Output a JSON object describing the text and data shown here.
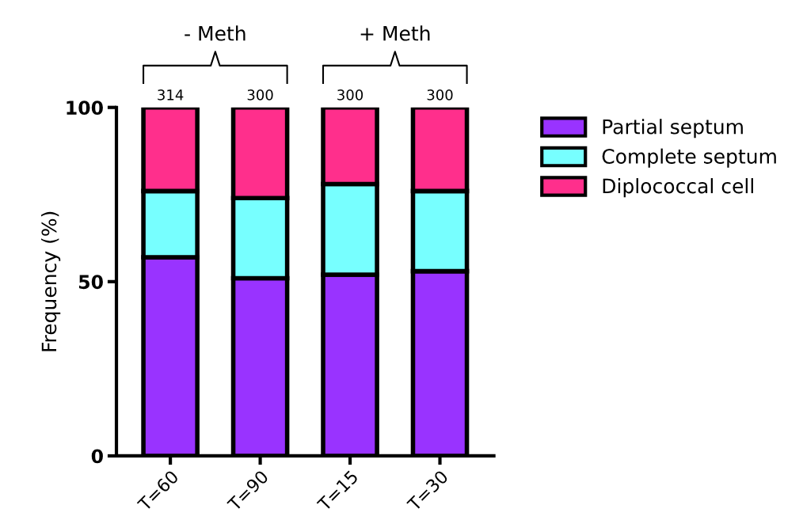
{
  "chart_data": {
    "type": "bar",
    "stacked": true,
    "ylabel": "Frequency (%)",
    "categories": [
      "T=60",
      "T=90",
      "T=15",
      "T=30"
    ],
    "series": [
      {
        "name": "Partial septum",
        "color": "#9933ff",
        "values": [
          57,
          51,
          52,
          53
        ]
      },
      {
        "name": "Complete septum",
        "color": "#77ffff",
        "values": [
          19,
          23,
          26,
          23
        ]
      },
      {
        "name": "Diplococcal cell",
        "color": "#ff2f8c",
        "values": [
          24,
          26,
          22,
          24
        ]
      }
    ],
    "ylim": [
      0,
      100
    ],
    "yticks": [
      0,
      50,
      100
    ],
    "grid": false,
    "legend": "top right",
    "annotations": [
      {
        "text": "314",
        "x": "T=60",
        "y": 100
      },
      {
        "text": "300",
        "x": "T=90",
        "y": 100
      },
      {
        "text": "300",
        "x": "T=15",
        "y": 100
      },
      {
        "text": "300",
        "x": "T=30",
        "y": 100
      },
      "- Meth",
      "+ Meth"
    ]
  }
}
